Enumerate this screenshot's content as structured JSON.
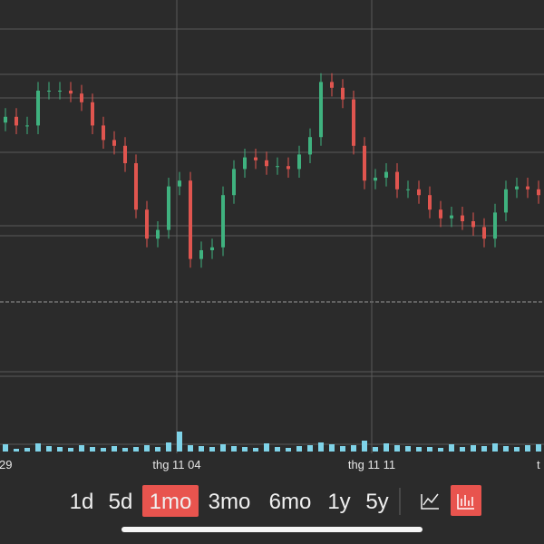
{
  "chart_data": {
    "type": "candlestick",
    "open": [
      64,
      66,
      63,
      63,
      75,
      75,
      75,
      74,
      71,
      63,
      58,
      56,
      50,
      34,
      24,
      27,
      42,
      44,
      17,
      20,
      21,
      39,
      48,
      52,
      51,
      49,
      49,
      48,
      53,
      59,
      78,
      76,
      72,
      56,
      44,
      45,
      47,
      41,
      41,
      39,
      34,
      31,
      32,
      30,
      28,
      24,
      33,
      41,
      42,
      41
    ],
    "high": [
      69,
      69,
      66,
      78,
      78,
      78,
      78,
      77,
      74,
      66,
      61,
      59,
      53,
      37,
      30,
      45,
      47,
      47,
      23,
      24,
      42,
      51,
      55,
      55,
      54,
      52,
      52,
      56,
      62,
      81,
      81,
      79,
      75,
      59,
      48,
      50,
      50,
      44,
      44,
      42,
      37,
      35,
      35,
      33,
      31,
      36,
      44,
      45,
      45,
      44
    ],
    "low": [
      61,
      60,
      60,
      60,
      72,
      72,
      71,
      68,
      60,
      55,
      53,
      47,
      31,
      21,
      21,
      24,
      39,
      14,
      14,
      17,
      18,
      36,
      45,
      48,
      46,
      46,
      45,
      45,
      50,
      56,
      73,
      69,
      53,
      41,
      41,
      42,
      38,
      38,
      36,
      31,
      28,
      28,
      27,
      25,
      21,
      21,
      30,
      38,
      38,
      36
    ],
    "close": [
      66,
      63,
      63,
      75,
      75,
      75,
      74,
      71,
      63,
      58,
      56,
      50,
      34,
      24,
      27,
      42,
      44,
      17,
      20,
      21,
      39,
      48,
      52,
      51,
      49,
      49,
      48,
      53,
      59,
      78,
      76,
      72,
      56,
      44,
      45,
      47,
      41,
      41,
      39,
      34,
      31,
      32,
      30,
      28,
      24,
      33,
      41,
      42,
      41,
      39
    ],
    "ylim": [
      0,
      100
    ],
    "volume": [
      8,
      3,
      4,
      9,
      6,
      5,
      4,
      7,
      5,
      4,
      6,
      4,
      5,
      7,
      5,
      10,
      22,
      7,
      6,
      5,
      8,
      6,
      5,
      4,
      9,
      5,
      4,
      6,
      7,
      10,
      8,
      6,
      7,
      12,
      5,
      9,
      7,
      6,
      5,
      5,
      4,
      8,
      5,
      7,
      6,
      9,
      6,
      5,
      7,
      8
    ],
    "volume_lim": [
      0,
      30
    ],
    "up_color": "#3fb27f",
    "down_color": "#e0554f",
    "volume_color": "#7fd3e8",
    "x_labels": [
      "29",
      "thg 11 04",
      "thg 11 11",
      "t"
    ]
  },
  "toolbar": {
    "ranges": [
      "1d",
      "5d",
      "1mo",
      "3mo",
      "6mo",
      "1y",
      "5y"
    ],
    "selected": 2,
    "accent": "#e8544e"
  }
}
